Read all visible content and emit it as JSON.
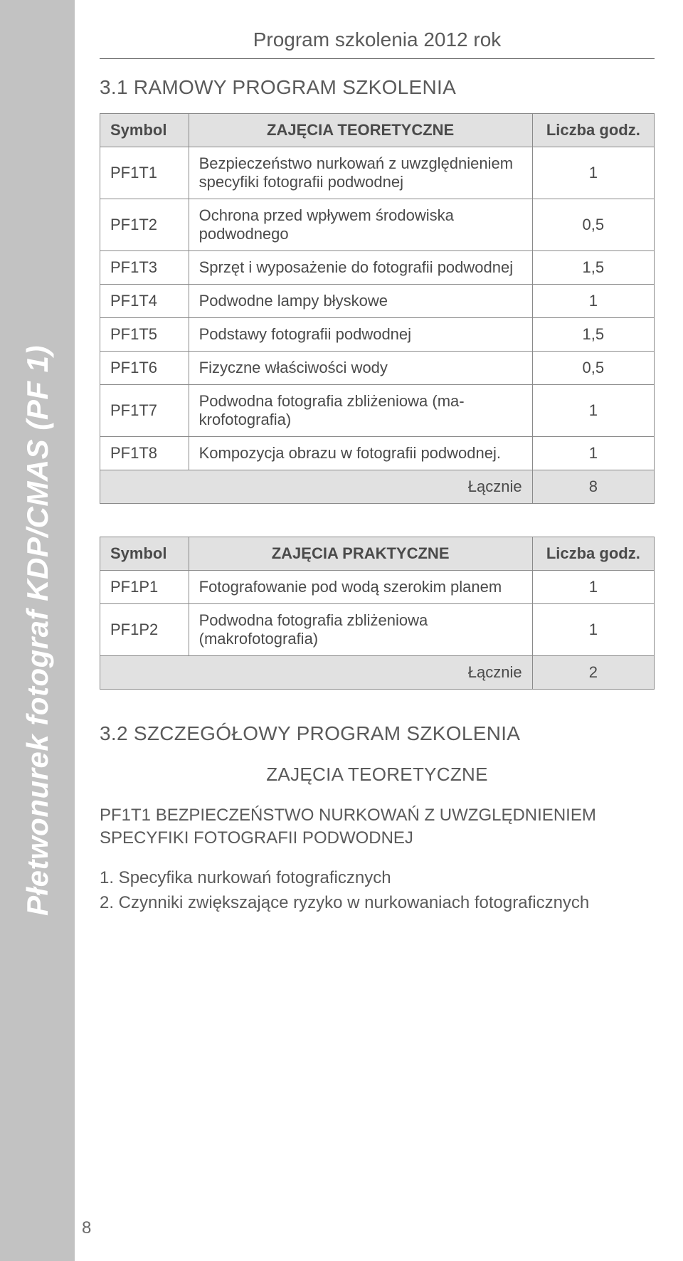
{
  "side_label": "Płetwonurek fotograf KDP/CMAS (PF 1)",
  "doc_title": "Program szkolenia 2012 rok",
  "section_1_heading": "3.1 RAMOWY PROGRAM SZKOLENIA",
  "table1": {
    "headers": {
      "symbol": "Symbol",
      "desc": "ZAJĘCIA TEORETYCZNE",
      "val": "Liczba godz."
    },
    "rows": [
      {
        "symbol": "PF1T1",
        "desc": "Bezpieczeństwo nurkowań z uwzględ­nieniem specyfiki fotografii podwodnej",
        "val": "1"
      },
      {
        "symbol": "PF1T2",
        "desc": "Ochrona przed wpływem środowiska podwodnego",
        "val": "0,5"
      },
      {
        "symbol": "PF1T3",
        "desc": "Sprzęt i wyposażenie do fotografii pod­wodnej",
        "val": "1,5"
      },
      {
        "symbol": "PF1T4",
        "desc": "Podwodne lampy błyskowe",
        "val": "1"
      },
      {
        "symbol": "PF1T5",
        "desc": "Podstawy fotografii podwodnej",
        "val": "1,5"
      },
      {
        "symbol": "PF1T6",
        "desc": "Fizyczne właściwości wody",
        "val": "0,5"
      },
      {
        "symbol": "PF1T7",
        "desc": "Podwodna fotografia zbliżeniowa (ma­krofotografia)",
        "val": "1"
      },
      {
        "symbol": "PF1T8",
        "desc": "Kompozycja obrazu w fotografii pod­wodnej.",
        "val": "1"
      }
    ],
    "total_label": "Łącznie",
    "total_val": "8"
  },
  "table2": {
    "headers": {
      "symbol": "Symbol",
      "desc": "ZAJĘCIA PRAKTYCZNE",
      "val": "Liczba godz."
    },
    "rows": [
      {
        "symbol": "PF1P1",
        "desc": "Fotografowanie pod wodą szerokim planem",
        "val": "1"
      },
      {
        "symbol": "PF1P2",
        "desc": "Podwodna fotografia zbliżeniowa (makrofotografia)",
        "val": "1"
      }
    ],
    "total_label": "Łącznie",
    "total_val": "2"
  },
  "section_2_heading": "3.2 SZCZEGÓŁOWY PROGRAM SZKOLENIA",
  "sub_heading": "ZAJĘCIA TEORETYCZNE",
  "block_title": "PF1T1 BEZPIECZEŃSTWO NURKOWAŃ Z UWZGLĘDNIENIEM SPECYFIKI FOTOGRAFII PODWODNEJ",
  "list": [
    "1. Specyfika nurkowań fotograficznych",
    "2. Czynniki zwiększające ryzyko w nurkowaniach fotograficznych"
  ],
  "page_num": "8",
  "colors": {
    "side_bg": "#c2c2c2",
    "side_text": "#ffffff",
    "header_bg": "#e1e1e1",
    "border": "#8a8a8a",
    "text": "#4a4a4a"
  }
}
